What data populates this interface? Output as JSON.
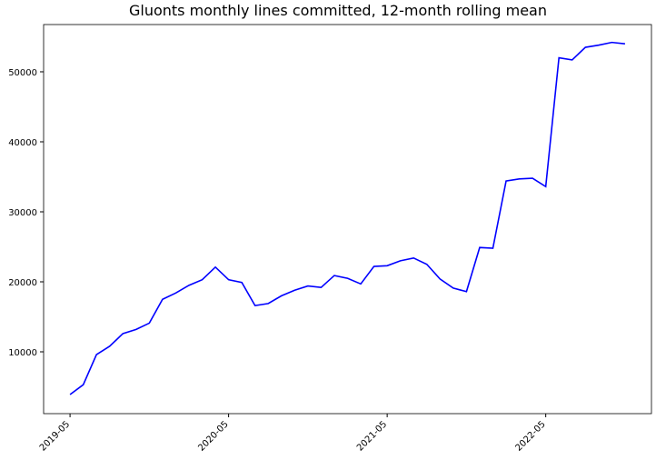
{
  "chart_data": {
    "type": "line",
    "title": "Gluonts monthly lines committed, 12-month rolling mean",
    "x": [
      "2019-05",
      "2019-06",
      "2019-07",
      "2019-08",
      "2019-09",
      "2019-10",
      "2019-11",
      "2019-12",
      "2020-01",
      "2020-02",
      "2020-03",
      "2020-04",
      "2020-05",
      "2020-06",
      "2020-07",
      "2020-08",
      "2020-09",
      "2020-10",
      "2020-11",
      "2020-12",
      "2021-01",
      "2021-02",
      "2021-03",
      "2021-04",
      "2021-05",
      "2021-06",
      "2021-07",
      "2021-08",
      "2021-09",
      "2021-10",
      "2021-11",
      "2021-12",
      "2022-01",
      "2022-02",
      "2022-03",
      "2022-04",
      "2022-05",
      "2022-06",
      "2022-07",
      "2022-08",
      "2022-09",
      "2022-10",
      "2022-11"
    ],
    "series": [
      {
        "name": "lines",
        "color": "#0000ff",
        "values": [
          3900,
          5300,
          9600,
          10800,
          12600,
          13200,
          14100,
          17500,
          18400,
          19500,
          20300,
          22100,
          20300,
          19900,
          16600,
          16900,
          18000,
          18800,
          19400,
          19200,
          20900,
          20500,
          19700,
          22200,
          22300,
          23000,
          23400,
          22500,
          20400,
          19100,
          18600,
          24900,
          24800,
          34400,
          34700,
          34800,
          33600,
          52000,
          51700,
          53500,
          53800,
          54200,
          54000
        ]
      }
    ],
    "xlim": [
      "2019-03",
      "2023-01"
    ],
    "xticks": [
      "2019-05",
      "2020-05",
      "2021-05",
      "2022-05"
    ],
    "ylim": [
      1170,
      56750
    ],
    "yticks": [
      10000,
      20000,
      30000,
      40000,
      50000
    ],
    "grid": false
  }
}
